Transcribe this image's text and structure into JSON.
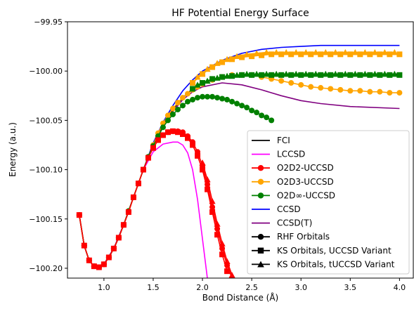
{
  "chart_data": {
    "type": "line",
    "title": "HF Potential Energy Surface",
    "xlabel": "Bond Distance (Å)",
    "ylabel": "Energy (a.u.)",
    "xlim": [
      0.63,
      4.14
    ],
    "ylim": [
      -100.21,
      -99.95
    ],
    "xticks": [
      1.0,
      1.5,
      2.0,
      2.5,
      3.0,
      3.5,
      4.0
    ],
    "xtick_labels": [
      "1.0",
      "1.5",
      "2.0",
      "2.5",
      "3.0",
      "3.5",
      "4.0"
    ],
    "yticks": [
      -99.95,
      -100.0,
      -100.05,
      -100.1,
      -100.15,
      -100.2
    ],
    "ytick_labels": [
      "−99.95",
      "−100.00",
      "−100.05",
      "−100.10",
      "−100.15",
      "−100.20"
    ],
    "grid": false,
    "legend_position": "lower-right",
    "series": [
      {
        "name": "FCI",
        "color": "#000000",
        "marker": "none",
        "x": [
          0.75,
          0.8,
          0.85,
          0.9,
          0.95,
          1.0,
          1.1,
          1.2,
          1.3,
          1.4,
          1.5,
          1.6,
          1.7,
          1.8,
          1.9,
          2.0,
          2.2,
          2.4,
          2.6,
          2.8,
          3.0,
          3.2,
          3.5,
          4.0
        ],
        "y": [
          -100.146,
          -100.177,
          -100.192,
          -100.198,
          -100.199,
          -100.196,
          -100.18,
          -100.156,
          -100.128,
          -100.1,
          -100.075,
          -100.055,
          -100.039,
          -100.027,
          -100.018,
          -100.012,
          -100.006,
          -100.004,
          -100.003,
          -100.003,
          -100.003,
          -100.003,
          -100.003,
          -100.003
        ]
      },
      {
        "name": "LCCSD",
        "color": "#ff00ff",
        "marker": "none",
        "x": [
          0.75,
          0.8,
          0.85,
          0.9,
          0.95,
          1.0,
          1.1,
          1.2,
          1.3,
          1.4,
          1.5,
          1.6,
          1.7,
          1.75,
          1.8,
          1.85,
          1.9,
          1.95,
          2.0,
          2.05
        ],
        "y": [
          -100.146,
          -100.177,
          -100.192,
          -100.198,
          -100.199,
          -100.196,
          -100.18,
          -100.156,
          -100.128,
          -100.1,
          -100.082,
          -100.074,
          -100.072,
          -100.072,
          -100.075,
          -100.083,
          -100.1,
          -100.13,
          -100.17,
          -100.21
        ]
      },
      {
        "name": "CCSD",
        "color": "#0000ff",
        "marker": "none",
        "x": [
          0.75,
          0.8,
          0.85,
          0.9,
          0.95,
          1.0,
          1.1,
          1.2,
          1.3,
          1.4,
          1.5,
          1.6,
          1.7,
          1.8,
          1.9,
          2.0,
          2.2,
          2.4,
          2.6,
          2.8,
          3.0,
          3.2,
          3.5,
          4.0
        ],
        "y": [
          -100.146,
          -100.177,
          -100.192,
          -100.198,
          -100.199,
          -100.196,
          -100.18,
          -100.156,
          -100.128,
          -100.1,
          -100.073,
          -100.052,
          -100.035,
          -100.02,
          -100.009,
          -100.0,
          -99.989,
          -99.982,
          -99.978,
          -99.976,
          -99.975,
          -99.974,
          -99.974,
          -99.974
        ]
      },
      {
        "name": "CCSD(T)",
        "color": "#800080",
        "marker": "none",
        "x": [
          0.75,
          0.8,
          0.85,
          0.9,
          0.95,
          1.0,
          1.1,
          1.2,
          1.3,
          1.4,
          1.5,
          1.6,
          1.7,
          1.8,
          1.9,
          2.0,
          2.2,
          2.4,
          2.6,
          2.8,
          3.0,
          3.2,
          3.5,
          4.0
        ],
        "y": [
          -100.146,
          -100.177,
          -100.192,
          -100.198,
          -100.199,
          -100.196,
          -100.18,
          -100.156,
          -100.128,
          -100.1,
          -100.076,
          -100.056,
          -100.041,
          -100.029,
          -100.021,
          -100.016,
          -100.012,
          -100.014,
          -100.019,
          -100.025,
          -100.03,
          -100.033,
          -100.036,
          -100.038
        ]
      },
      {
        "name": "O2D2-UCCSD",
        "color": "#ff0000",
        "marker": "circle",
        "x": [
          0.75,
          0.8,
          0.85,
          0.9,
          0.95,
          1.0,
          1.05,
          1.1,
          1.15,
          1.2,
          1.25,
          1.3,
          1.35,
          1.4,
          1.45,
          1.5,
          1.55,
          1.6,
          1.65,
          1.7,
          1.75,
          1.8,
          1.85,
          1.9,
          1.95,
          2.0,
          2.05,
          2.1,
          2.15,
          2.2,
          2.25,
          2.3
        ],
        "y": [
          -100.146,
          -100.177,
          -100.192,
          -100.198,
          -100.199,
          -100.196,
          -100.189,
          -100.18,
          -100.169,
          -100.156,
          -100.143,
          -100.128,
          -100.114,
          -100.1,
          -100.088,
          -100.078,
          -100.07,
          -100.065,
          -100.062,
          -100.061,
          -100.061,
          -100.062,
          -100.066,
          -100.072,
          -100.082,
          -100.096,
          -100.115,
          -100.138,
          -100.16,
          -100.18,
          -100.197,
          -100.21
        ]
      },
      {
        "name": "O2D3-UCCSD",
        "color": "#ffa500",
        "marker": "circle",
        "x": [
          0.75,
          0.8,
          0.85,
          0.9,
          0.95,
          1.0,
          1.05,
          1.1,
          1.15,
          1.2,
          1.25,
          1.3,
          1.35,
          1.4,
          1.45,
          1.5,
          1.55,
          1.6,
          1.65,
          1.7,
          1.75,
          1.8,
          1.85,
          1.9,
          1.95,
          2.0,
          2.1,
          2.2,
          2.3,
          2.4,
          2.5,
          2.6,
          2.7,
          2.8,
          2.9,
          3.0,
          3.1,
          3.2,
          3.3,
          3.4,
          3.5,
          3.6,
          3.7,
          3.8,
          3.9,
          4.0
        ],
        "y": [
          -100.146,
          -100.177,
          -100.192,
          -100.198,
          -100.199,
          -100.196,
          -100.189,
          -100.18,
          -100.169,
          -100.156,
          -100.142,
          -100.128,
          -100.114,
          -100.1,
          -100.087,
          -100.075,
          -100.063,
          -100.053,
          -100.045,
          -100.038,
          -100.032,
          -100.027,
          -100.023,
          -100.019,
          -100.016,
          -100.013,
          -100.009,
          -100.006,
          -100.004,
          -100.004,
          -100.004,
          -100.006,
          -100.008,
          -100.01,
          -100.012,
          -100.014,
          -100.016,
          -100.017,
          -100.018,
          -100.019,
          -100.02,
          -100.02,
          -100.021,
          -100.021,
          -100.022,
          -100.022
        ]
      },
      {
        "name": "O2D∞-UCCSD",
        "color": "#008000",
        "marker": "circle",
        "x": [
          0.75,
          0.8,
          0.85,
          0.9,
          0.95,
          1.0,
          1.05,
          1.1,
          1.15,
          1.2,
          1.25,
          1.3,
          1.35,
          1.4,
          1.45,
          1.5,
          1.55,
          1.6,
          1.65,
          1.7,
          1.75,
          1.8,
          1.85,
          1.9,
          1.95,
          2.0,
          2.05,
          2.1,
          2.15,
          2.2,
          2.25,
          2.3,
          2.35,
          2.4,
          2.45,
          2.5,
          2.55,
          2.6,
          2.65,
          2.7
        ],
        "y": [
          -100.146,
          -100.177,
          -100.192,
          -100.198,
          -100.199,
          -100.196,
          -100.189,
          -100.18,
          -100.169,
          -100.156,
          -100.142,
          -100.128,
          -100.114,
          -100.1,
          -100.087,
          -100.076,
          -100.066,
          -100.057,
          -100.05,
          -100.044,
          -100.039,
          -100.035,
          -100.031,
          -100.029,
          -100.027,
          -100.026,
          -100.026,
          -100.026,
          -100.027,
          -100.028,
          -100.029,
          -100.031,
          -100.033,
          -100.035,
          -100.037,
          -100.04,
          -100.042,
          -100.045,
          -100.047,
          -100.05
        ]
      },
      {
        "name": "O2D2 KS UCCSD",
        "color": "#ff0000",
        "marker": "square",
        "legend": false,
        "x": [
          0.75,
          0.8,
          0.85,
          0.9,
          0.95,
          1.0,
          1.05,
          1.1,
          1.15,
          1.2,
          1.25,
          1.3,
          1.35,
          1.4,
          1.45,
          1.5,
          1.55,
          1.6,
          1.65,
          1.7,
          1.75,
          1.8,
          1.85,
          1.9,
          1.95,
          2.0,
          2.05,
          2.1,
          2.15,
          2.2,
          2.25
        ],
        "y": [
          -100.146,
          -100.177,
          -100.192,
          -100.198,
          -100.199,
          -100.196,
          -100.189,
          -100.18,
          -100.169,
          -100.156,
          -100.143,
          -100.128,
          -100.114,
          -100.1,
          -100.088,
          -100.078,
          -100.07,
          -100.065,
          -100.062,
          -100.061,
          -100.062,
          -100.064,
          -100.068,
          -100.075,
          -100.086,
          -100.1,
          -100.12,
          -100.143,
          -100.166,
          -100.186,
          -100.203
        ]
      },
      {
        "name": "O2D2 KS tUCCSD",
        "color": "#ff0000",
        "marker": "triangle",
        "legend": false,
        "x": [
          2.0,
          2.05,
          2.1,
          2.15,
          2.2,
          2.25,
          2.3
        ],
        "y": [
          -100.093,
          -100.11,
          -100.132,
          -100.155,
          -100.175,
          -100.193,
          -100.207
        ]
      },
      {
        "name": "O2D3 KS UCCSD",
        "color": "#ffa500",
        "marker": "square",
        "legend": false,
        "x": [
          1.9,
          2.0,
          2.1,
          2.2,
          2.3,
          2.4,
          2.5,
          2.6,
          2.7,
          2.8,
          2.9,
          3.0,
          3.1,
          3.2,
          3.3,
          3.4,
          3.5,
          3.6,
          3.7,
          3.8,
          3.9,
          4.0
        ],
        "y": [
          -100.012,
          -100.003,
          -99.996,
          -99.991,
          -99.988,
          -99.986,
          -99.985,
          -99.984,
          -99.983,
          -99.983,
          -99.983,
          -99.983,
          -99.983,
          -99.983,
          -99.983,
          -99.983,
          -99.983,
          -99.983,
          -99.983,
          -99.983,
          -99.983,
          -99.983
        ]
      },
      {
        "name": "O2D3 KS tUCCSD",
        "color": "#ffa500",
        "marker": "triangle",
        "legend": false,
        "x": [
          1.95,
          2.05,
          2.15,
          2.25,
          2.35,
          2.45,
          2.55,
          2.65,
          2.75,
          2.85,
          2.95,
          3.05,
          3.15,
          3.25,
          3.35,
          3.45,
          3.55,
          3.65,
          3.75,
          3.85,
          3.95
        ],
        "y": [
          -100.006,
          -99.998,
          -99.992,
          -99.988,
          -99.985,
          -99.983,
          -99.982,
          -99.981,
          -99.981,
          -99.981,
          -99.981,
          -99.981,
          -99.981,
          -99.981,
          -99.981,
          -99.981,
          -99.981,
          -99.981,
          -99.981,
          -99.981,
          -99.981
        ]
      },
      {
        "name": "O2D∞ KS UCCSD",
        "color": "#008000",
        "marker": "square",
        "legend": false,
        "x": [
          1.9,
          2.0,
          2.1,
          2.2,
          2.3,
          2.4,
          2.5,
          2.6,
          2.7,
          2.8,
          2.9,
          3.0,
          3.1,
          3.2,
          3.3,
          3.4,
          3.5,
          3.6,
          3.7,
          3.8,
          3.9,
          4.0
        ],
        "y": [
          -100.018,
          -100.012,
          -100.008,
          -100.006,
          -100.005,
          -100.004,
          -100.004,
          -100.004,
          -100.004,
          -100.004,
          -100.004,
          -100.004,
          -100.004,
          -100.004,
          -100.004,
          -100.004,
          -100.004,
          -100.004,
          -100.004,
          -100.004,
          -100.004,
          -100.004
        ]
      },
      {
        "name": "O2D∞ KS tUCCSD",
        "color": "#008000",
        "marker": "triangle",
        "legend": false,
        "x": [
          1.95,
          2.05,
          2.15,
          2.25,
          2.35,
          2.45,
          2.55,
          2.65,
          2.75,
          2.85,
          2.95,
          3.05,
          3.15,
          3.25,
          3.35,
          3.45,
          3.55,
          3.65,
          3.75,
          3.85,
          3.95
        ],
        "y": [
          -100.014,
          -100.01,
          -100.007,
          -100.005,
          -100.004,
          -100.003,
          -100.003,
          -100.003,
          -100.003,
          -100.003,
          -100.003,
          -100.003,
          -100.003,
          -100.003,
          -100.003,
          -100.003,
          -100.003,
          -100.003,
          -100.003,
          -100.003,
          -100.003
        ]
      }
    ],
    "legend_entries": [
      {
        "label": "FCI",
        "color": "#000000",
        "marker": "none"
      },
      {
        "label": "LCCSD",
        "color": "#ff00ff",
        "marker": "none"
      },
      {
        "label": "O2D2-UCCSD",
        "color": "#ff0000",
        "marker": "circle"
      },
      {
        "label": "O2D3-UCCSD",
        "color": "#ffa500",
        "marker": "circle"
      },
      {
        "label": "O2D∞-UCCSD",
        "color": "#008000",
        "marker": "circle"
      },
      {
        "label": "CCSD",
        "color": "#0000ff",
        "marker": "none"
      },
      {
        "label": "CCSD(T)",
        "color": "#800080",
        "marker": "none"
      },
      {
        "label": "RHF Orbitals",
        "color": "#000000",
        "marker": "circle"
      },
      {
        "label": "KS Orbitals, UCCSD Variant",
        "color": "#000000",
        "marker": "square"
      },
      {
        "label": "KS Orbitals, tUCCSD Variant",
        "color": "#000000",
        "marker": "triangle"
      }
    ]
  }
}
